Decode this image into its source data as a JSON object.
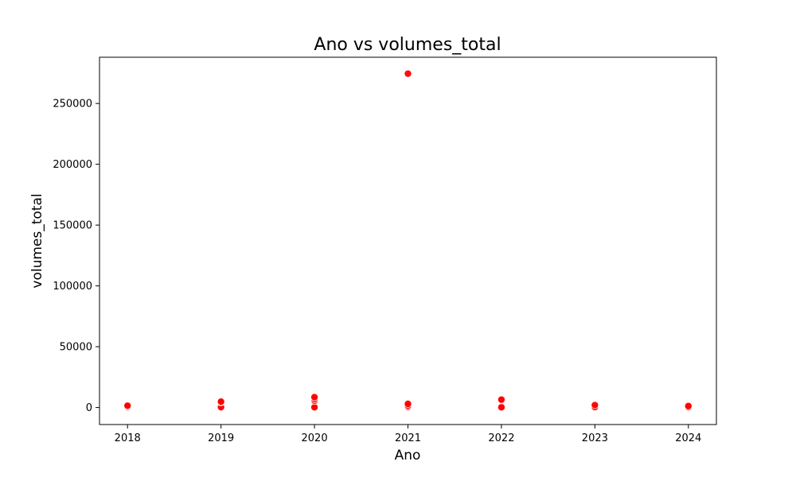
{
  "chart_data": {
    "type": "scatter",
    "title": "Ano vs volumes_total",
    "xlabel": "Ano",
    "ylabel": "volumes_total",
    "xlim": [
      2017.7,
      2024.3
    ],
    "ylim": [
      -14000,
      288000
    ],
    "xticks": [
      2018,
      2019,
      2020,
      2021,
      2022,
      2023,
      2024
    ],
    "yticks": [
      0,
      50000,
      100000,
      150000,
      200000,
      250000
    ],
    "grid": false,
    "point_color": "#ff0000",
    "point_edge_color": "#ffffff",
    "points": [
      {
        "x": 2018,
        "y": 0
      },
      {
        "x": 2018,
        "y": 200
      },
      {
        "x": 2018,
        "y": 800
      },
      {
        "x": 2018,
        "y": 1500
      },
      {
        "x": 2019,
        "y": 0
      },
      {
        "x": 2019,
        "y": 300
      },
      {
        "x": 2019,
        "y": 4300
      },
      {
        "x": 2019,
        "y": 4800
      },
      {
        "x": 2020,
        "y": 0
      },
      {
        "x": 2020,
        "y": 200
      },
      {
        "x": 2020,
        "y": 5500
      },
      {
        "x": 2020,
        "y": 7000
      },
      {
        "x": 2020,
        "y": 8500
      },
      {
        "x": 2021,
        "y": 0
      },
      {
        "x": 2021,
        "y": 500
      },
      {
        "x": 2021,
        "y": 1500
      },
      {
        "x": 2021,
        "y": 3000
      },
      {
        "x": 2021,
        "y": 274500
      },
      {
        "x": 2022,
        "y": 0
      },
      {
        "x": 2022,
        "y": 200
      },
      {
        "x": 2022,
        "y": 6000
      },
      {
        "x": 2022,
        "y": 6500
      },
      {
        "x": 2023,
        "y": 0
      },
      {
        "x": 2023,
        "y": 400
      },
      {
        "x": 2023,
        "y": 2000
      },
      {
        "x": 2024,
        "y": 0
      },
      {
        "x": 2024,
        "y": 300
      },
      {
        "x": 2024,
        "y": 1200
      }
    ]
  }
}
